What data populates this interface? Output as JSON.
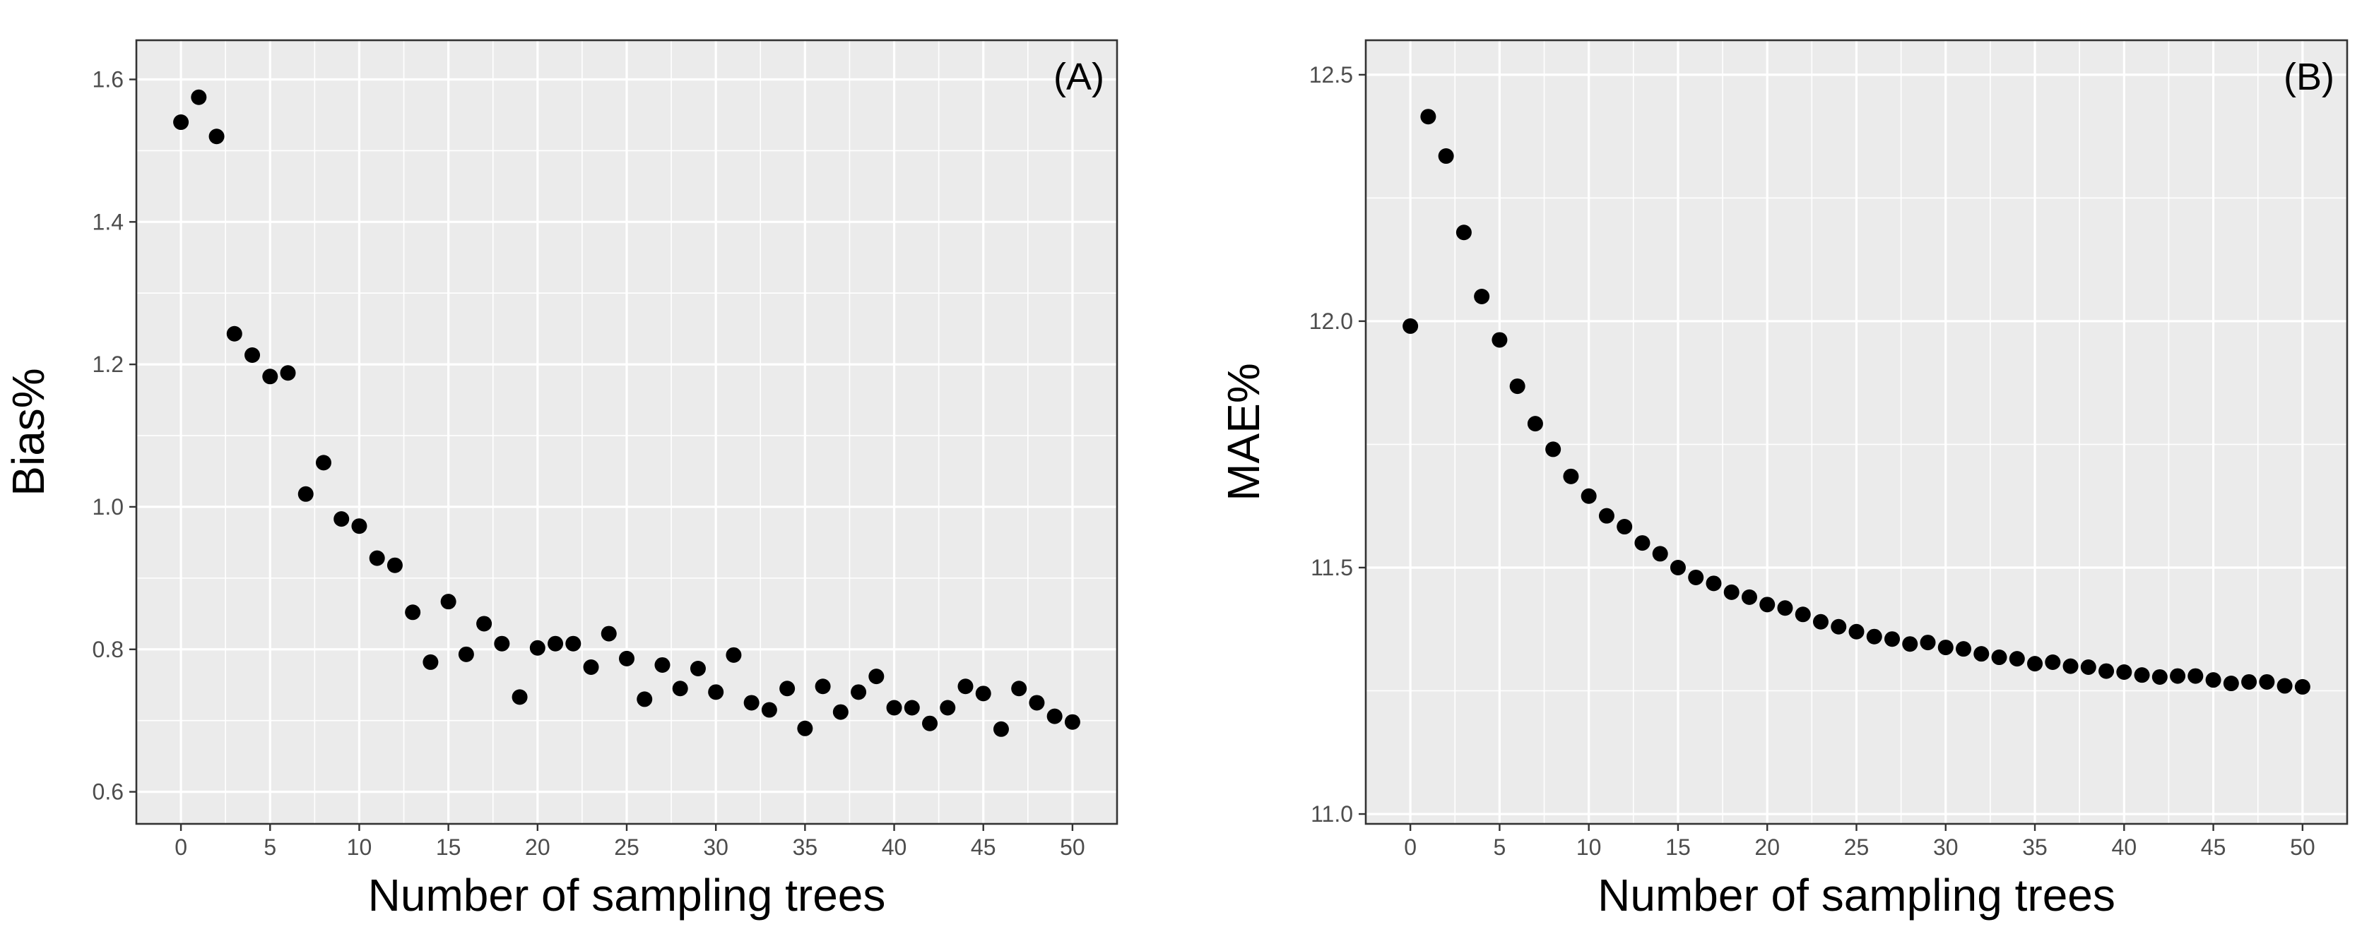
{
  "chart_data": [
    {
      "type": "scatter",
      "panel_label": "(A)",
      "xlabel": "Number of sampling trees",
      "ylabel": "Bias%",
      "xlim": [
        -2.5,
        52.5
      ],
      "ylim": [
        0.555,
        1.655
      ],
      "xticks": [
        0,
        5,
        10,
        15,
        20,
        25,
        30,
        35,
        40,
        45,
        50
      ],
      "xtick_labels": [
        "0",
        "5",
        "10",
        "15",
        "20",
        "25",
        "30",
        "35",
        "40",
        "45",
        "50"
      ],
      "yticks": [
        0.6,
        0.8,
        1.0,
        1.2,
        1.4,
        1.6
      ],
      "ytick_labels": [
        "0.6",
        "0.8",
        "1.0",
        "1.2",
        "1.4",
        "1.6"
      ],
      "grid": true,
      "series": [
        {
          "name": "Bias%",
          "x": [
            0,
            1,
            2,
            3,
            4,
            5,
            6,
            7,
            8,
            9,
            10,
            11,
            12,
            13,
            14,
            15,
            16,
            17,
            18,
            19,
            20,
            21,
            22,
            23,
            24,
            25,
            26,
            27,
            28,
            29,
            30,
            31,
            32,
            33,
            34,
            35,
            36,
            37,
            38,
            39,
            40,
            41,
            42,
            43,
            44,
            45,
            46,
            47,
            48,
            49,
            50
          ],
          "y": [
            1.54,
            1.575,
            1.52,
            1.243,
            1.213,
            1.183,
            1.188,
            1.018,
            1.062,
            0.983,
            0.973,
            0.928,
            0.918,
            0.852,
            0.782,
            0.867,
            0.793,
            0.836,
            0.808,
            0.733,
            0.802,
            0.808,
            0.808,
            0.775,
            0.822,
            0.787,
            0.73,
            0.778,
            0.745,
            0.773,
            0.74,
            0.792,
            0.725,
            0.715,
            0.745,
            0.689,
            0.748,
            0.712,
            0.74,
            0.762,
            0.718,
            0.718,
            0.696,
            0.718,
            0.748,
            0.738,
            0.688,
            0.745,
            0.725,
            0.706,
            0.698
          ]
        }
      ]
    },
    {
      "type": "scatter",
      "panel_label": "(B)",
      "xlabel": "Number of sampling trees",
      "ylabel": "MAE%",
      "xlim": [
        -2.5,
        52.5
      ],
      "ylim": [
        10.98,
        12.57
      ],
      "xticks": [
        0,
        5,
        10,
        15,
        20,
        25,
        30,
        35,
        40,
        45,
        50
      ],
      "xtick_labels": [
        "0",
        "5",
        "10",
        "15",
        "20",
        "25",
        "30",
        "35",
        "40",
        "45",
        "50"
      ],
      "yticks": [
        11.0,
        11.5,
        12.0,
        12.5
      ],
      "ytick_labels": [
        "11.0",
        "11.5",
        "12.0",
        "12.5"
      ],
      "grid": true,
      "series": [
        {
          "name": "MAE%",
          "x": [
            0,
            1,
            2,
            3,
            4,
            5,
            6,
            7,
            8,
            9,
            10,
            11,
            12,
            13,
            14,
            15,
            16,
            17,
            18,
            19,
            20,
            21,
            22,
            23,
            24,
            25,
            26,
            27,
            28,
            29,
            30,
            31,
            32,
            33,
            34,
            35,
            36,
            37,
            38,
            39,
            40,
            41,
            42,
            43,
            44,
            45,
            46,
            47,
            48,
            49,
            50
          ],
          "y": [
            11.99,
            12.415,
            12.335,
            12.18,
            12.05,
            11.962,
            11.868,
            11.792,
            11.74,
            11.685,
            11.645,
            11.605,
            11.583,
            11.55,
            11.528,
            11.5,
            11.48,
            11.468,
            11.45,
            11.44,
            11.425,
            11.418,
            11.405,
            11.39,
            11.38,
            11.37,
            11.36,
            11.355,
            11.345,
            11.348,
            11.338,
            11.335,
            11.325,
            11.318,
            11.315,
            11.305,
            11.308,
            11.3,
            11.298,
            11.29,
            11.288,
            11.282,
            11.278,
            11.28,
            11.28,
            11.272,
            11.265,
            11.268,
            11.268,
            11.26,
            11.258
          ]
        }
      ]
    }
  ]
}
